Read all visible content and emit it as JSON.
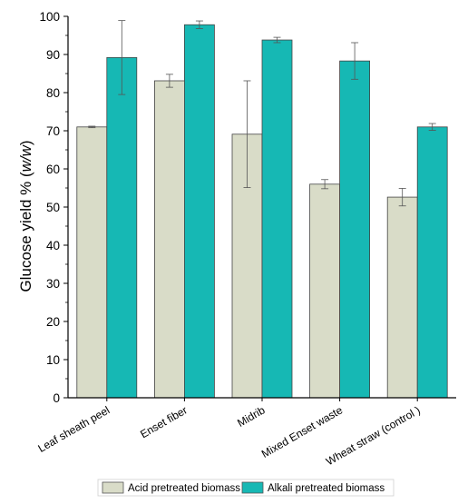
{
  "chart_data": {
    "type": "bar",
    "title": "",
    "xlabel": "",
    "ylabel": "Glucose yield % (w/w)",
    "ylabel_parts": {
      "prefix": "Glucose yield % (",
      "italic": "w/w",
      "suffix": ")"
    },
    "ylim": [
      0,
      100
    ],
    "yticks": [
      0,
      10,
      20,
      30,
      40,
      50,
      60,
      70,
      80,
      90,
      100
    ],
    "categories": [
      "Leaf sheath peel",
      "Enset fiber",
      "Midrib",
      "Mixed Enset waste",
      "Wheat straw (control )"
    ],
    "series": [
      {
        "name": "Acid pretreated biomass",
        "color": "#d9dcc8",
        "values": [
          71.0,
          83.1,
          69.1,
          56.0,
          52.6
        ],
        "errors": [
          0.2,
          1.7,
          14.0,
          1.2,
          2.3
        ]
      },
      {
        "name": "Alkali pretreated biomass",
        "color": "#16b8b4",
        "values": [
          89.2,
          97.8,
          93.8,
          88.3,
          71.0
        ],
        "errors": [
          9.7,
          1.0,
          0.7,
          4.8,
          0.9
        ]
      }
    ],
    "legend_position": "bottom",
    "grid": false
  }
}
